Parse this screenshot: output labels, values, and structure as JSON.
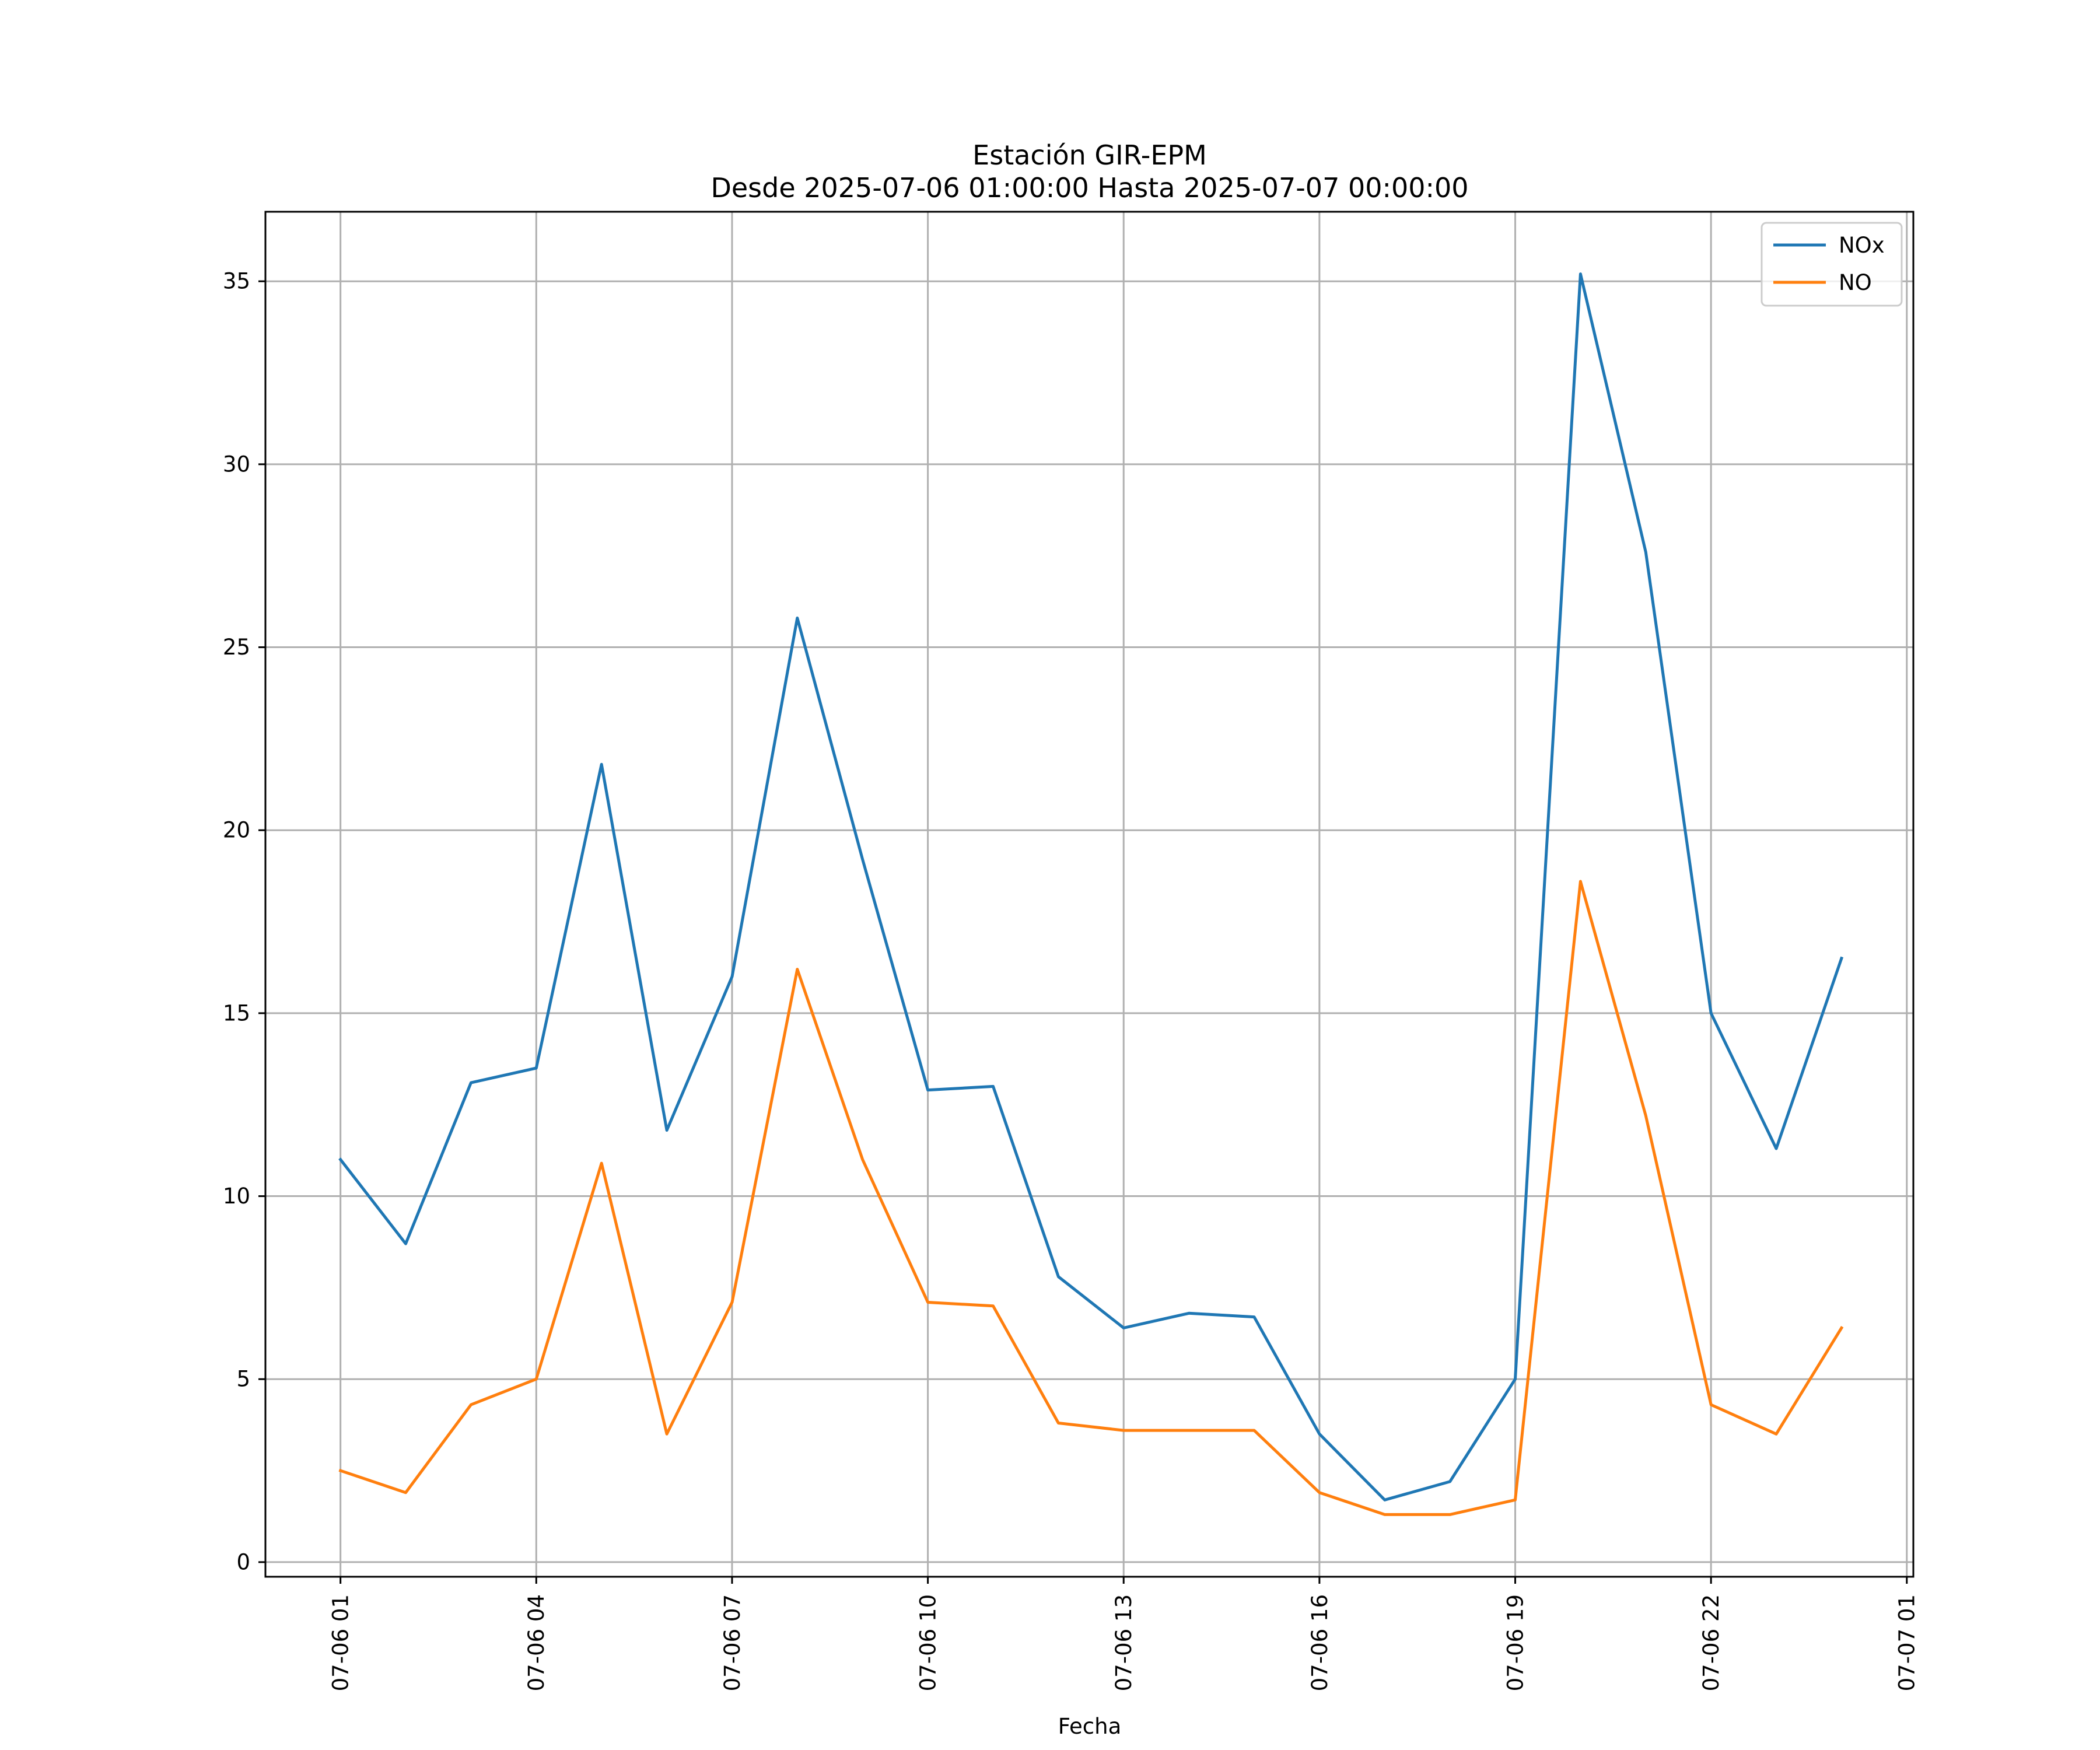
{
  "chart_data": {
    "type": "line",
    "title": "Estación GIR-EPM",
    "subtitle": "Desde 2025-07-06 01:00:00 Hasta 2025-07-07 00:00:00",
    "xlabel": "Fecha",
    "ylabel": "",
    "x": [
      "07-06 01",
      "07-06 02",
      "07-06 03",
      "07-06 04",
      "07-06 05",
      "07-06 06",
      "07-06 07",
      "07-06 08",
      "07-06 09",
      "07-06 10",
      "07-06 11",
      "07-06 12",
      "07-06 13",
      "07-06 14",
      "07-06 15",
      "07-06 16",
      "07-06 17",
      "07-06 18",
      "07-06 19",
      "07-06 20",
      "07-06 21",
      "07-06 22",
      "07-06 23",
      "07-07 00"
    ],
    "xlim_hours": [
      -1.15,
      24.1
    ],
    "ylim": [
      -0.4,
      36.9
    ],
    "xticks": [
      {
        "hour": 0,
        "label": "07-06 01"
      },
      {
        "hour": 3,
        "label": "07-06 04"
      },
      {
        "hour": 6,
        "label": "07-06 07"
      },
      {
        "hour": 9,
        "label": "07-06 10"
      },
      {
        "hour": 12,
        "label": "07-06 13"
      },
      {
        "hour": 15,
        "label": "07-06 16"
      },
      {
        "hour": 18,
        "label": "07-06 19"
      },
      {
        "hour": 21,
        "label": "07-06 22"
      },
      {
        "hour": 24,
        "label": "07-07 01"
      }
    ],
    "yticks": [
      {
        "value": 0,
        "label": "0"
      },
      {
        "value": 5,
        "label": "5"
      },
      {
        "value": 10,
        "label": "10"
      },
      {
        "value": 15,
        "label": "15"
      },
      {
        "value": 20,
        "label": "20"
      },
      {
        "value": 25,
        "label": "25"
      },
      {
        "value": 30,
        "label": "30"
      },
      {
        "value": 35,
        "label": "35"
      }
    ],
    "grid": true,
    "legend_position": "top-right",
    "series": [
      {
        "name": "NOx",
        "color": "#1f77b4",
        "values": [
          11.0,
          8.7,
          13.1,
          13.5,
          21.8,
          11.8,
          16.0,
          25.8,
          19.2,
          12.9,
          13.0,
          7.8,
          6.4,
          6.8,
          6.7,
          3.5,
          1.7,
          2.2,
          5.0,
          35.2,
          27.6,
          15.0,
          11.3,
          16.5
        ]
      },
      {
        "name": "NO",
        "color": "#ff7f0e",
        "values": [
          2.5,
          1.9,
          4.3,
          5.0,
          10.9,
          3.5,
          7.1,
          16.2,
          11.0,
          7.1,
          7.0,
          3.8,
          3.6,
          3.6,
          3.6,
          1.9,
          1.3,
          1.3,
          1.7,
          18.6,
          12.2,
          4.3,
          3.5,
          6.4
        ]
      }
    ]
  }
}
